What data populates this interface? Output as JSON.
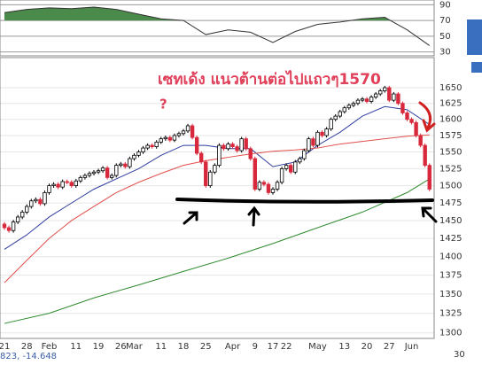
{
  "chart_data": [
    {
      "type": "line",
      "x": [
        0,
        5,
        10,
        15,
        20,
        25,
        30,
        35,
        40,
        45,
        50,
        55,
        60,
        65,
        70,
        75,
        80,
        85,
        90,
        95
      ],
      "values": [
        80,
        84,
        86,
        85,
        87,
        84,
        78,
        72,
        70,
        52,
        58,
        55,
        42,
        56,
        65,
        68,
        72,
        74,
        58,
        38
      ],
      "color": "#333333",
      "fill_above": 70,
      "fill_color": "#4a8a4a",
      "ylim": [
        25,
        96
      ],
      "yticks": [
        30,
        50,
        70,
        90
      ],
      "grid": true
    },
    {
      "type": "candlestick",
      "log": true,
      "grid": true,
      "annotations": [
        "เซทเด้ง แนวต้านต่อไปแถวๆ1570",
        "?"
      ],
      "categories": [
        "21",
        null,
        null,
        null,
        null,
        "28",
        null,
        null,
        null,
        null,
        "Feb",
        null,
        null,
        null,
        null,
        null,
        "11",
        null,
        null,
        null,
        null,
        "19",
        null,
        null,
        null,
        null,
        "26",
        null,
        null,
        "Mar",
        null,
        null,
        null,
        null,
        null,
        "11",
        null,
        null,
        null,
        null,
        "18",
        null,
        null,
        null,
        null,
        "25",
        null,
        null,
        null,
        null,
        null,
        "Apr",
        null,
        null,
        null,
        null,
        "9",
        null,
        null,
        null,
        "17",
        null,
        null,
        "22",
        null,
        null,
        null,
        null,
        null,
        null,
        "May",
        null,
        null,
        null,
        null,
        null,
        "13",
        null,
        null,
        null,
        null,
        "20",
        null,
        null,
        null,
        null,
        "27",
        null,
        null,
        null,
        null,
        "Jun",
        null,
        null,
        null,
        null
      ],
      "open": [
        1445,
        1440,
        1436,
        1448,
        1455,
        1462,
        1470,
        1478,
        1480,
        1474,
        1490,
        1500,
        1502,
        1498,
        1506,
        1505,
        1500,
        1507,
        1512,
        1515,
        1518,
        1520,
        1522,
        1526,
        1512,
        1515,
        1530,
        1532,
        1528,
        1540,
        1545,
        1550,
        1556,
        1560,
        1558,
        1565,
        1570,
        1572,
        1568,
        1575,
        1578,
        1582,
        1590,
        1572,
        1548,
        1535,
        1500,
        1520,
        1530,
        1560,
        1555,
        1562,
        1558,
        1552,
        1570,
        1555,
        1540,
        1495,
        1505,
        1502,
        1490,
        1495,
        1505,
        1525,
        1530,
        1520,
        1535,
        1540,
        1552,
        1570,
        1560,
        1580,
        1575,
        1585,
        1600,
        1605,
        1612,
        1618,
        1622,
        1625,
        1630,
        1632,
        1628,
        1635,
        1640,
        1645,
        1650,
        1630,
        1640,
        1625,
        1610,
        1600,
        1595,
        1575,
        1560,
        1530
      ],
      "high": [
        1448,
        1443,
        1451,
        1458,
        1465,
        1473,
        1481,
        1483,
        1483,
        1493,
        1503,
        1505,
        1505,
        1509,
        1509,
        1508,
        1510,
        1515,
        1518,
        1521,
        1523,
        1525,
        1529,
        1529,
        1518,
        1533,
        1535,
        1535,
        1543,
        1548,
        1553,
        1559,
        1563,
        1563,
        1568,
        1573,
        1575,
        1575,
        1578,
        1581,
        1585,
        1593,
        1593,
        1575,
        1551,
        1538,
        1523,
        1533,
        1563,
        1563,
        1565,
        1565,
        1561,
        1573,
        1573,
        1558,
        1543,
        1508,
        1508,
        1505,
        1498,
        1508,
        1528,
        1533,
        1533,
        1538,
        1543,
        1555,
        1573,
        1573,
        1583,
        1583,
        1588,
        1603,
        1608,
        1615,
        1621,
        1625,
        1628,
        1633,
        1635,
        1635,
        1638,
        1643,
        1648,
        1653,
        1653,
        1643,
        1643,
        1628,
        1613,
        1603,
        1598,
        1578,
        1563,
        1533
      ],
      "low": [
        1437,
        1433,
        1433,
        1445,
        1452,
        1459,
        1467,
        1475,
        1471,
        1471,
        1487,
        1497,
        1495,
        1495,
        1502,
        1497,
        1497,
        1504,
        1509,
        1512,
        1515,
        1517,
        1519,
        1509,
        1509,
        1512,
        1527,
        1525,
        1525,
        1537,
        1542,
        1547,
        1553,
        1555,
        1555,
        1562,
        1567,
        1565,
        1565,
        1572,
        1575,
        1579,
        1569,
        1545,
        1532,
        1497,
        1497,
        1517,
        1527,
        1552,
        1552,
        1555,
        1549,
        1549,
        1552,
        1537,
        1492,
        1492,
        1499,
        1487,
        1487,
        1492,
        1502,
        1522,
        1517,
        1517,
        1532,
        1537,
        1549,
        1557,
        1557,
        1572,
        1572,
        1582,
        1597,
        1602,
        1609,
        1615,
        1619,
        1622,
        1627,
        1625,
        1625,
        1632,
        1637,
        1642,
        1627,
        1627,
        1622,
        1607,
        1597,
        1592,
        1572,
        1557,
        1527,
        1492
      ],
      "close": [
        1440,
        1436,
        1448,
        1455,
        1462,
        1470,
        1478,
        1480,
        1474,
        1490,
        1500,
        1502,
        1498,
        1506,
        1505,
        1500,
        1507,
        1512,
        1515,
        1518,
        1520,
        1522,
        1526,
        1512,
        1515,
        1530,
        1532,
        1528,
        1540,
        1545,
        1550,
        1556,
        1560,
        1558,
        1565,
        1570,
        1572,
        1568,
        1575,
        1578,
        1582,
        1590,
        1572,
        1548,
        1535,
        1500,
        1520,
        1530,
        1560,
        1555,
        1562,
        1558,
        1552,
        1570,
        1555,
        1540,
        1495,
        1505,
        1502,
        1490,
        1495,
        1505,
        1525,
        1530,
        1520,
        1535,
        1540,
        1552,
        1570,
        1560,
        1580,
        1575,
        1585,
        1600,
        1605,
        1612,
        1618,
        1622,
        1625,
        1630,
        1632,
        1628,
        1635,
        1640,
        1645,
        1650,
        1630,
        1640,
        1625,
        1610,
        1600,
        1595,
        1575,
        1560,
        1530,
        1495
      ],
      "series": [
        {
          "color": "#2f3ea0",
          "x": [
            0,
            5,
            10,
            15,
            20,
            25,
            30,
            35,
            40,
            45,
            50,
            55,
            60,
            65,
            70,
            75,
            80,
            85,
            90,
            95
          ],
          "values": [
            1410,
            1430,
            1455,
            1475,
            1495,
            1510,
            1525,
            1545,
            1560,
            1560,
            1555,
            1555,
            1528,
            1535,
            1560,
            1580,
            1605,
            1620,
            1615,
            1592
          ]
        },
        {
          "color": "#e0504c",
          "x": [
            0,
            5,
            10,
            15,
            20,
            25,
            30,
            35,
            40,
            45,
            50,
            55,
            60,
            65,
            70,
            75,
            80,
            85,
            90,
            95
          ],
          "values": [
            1365,
            1395,
            1425,
            1450,
            1470,
            1490,
            1505,
            1518,
            1530,
            1537,
            1542,
            1547,
            1551,
            1553,
            1556,
            1562,
            1566,
            1570,
            1574,
            1576
          ]
        },
        {
          "color": "#2e8b2e",
          "x": [
            0,
            10,
            20,
            30,
            40,
            50,
            60,
            70,
            80,
            90,
            95
          ],
          "values": [
            1312,
            1325,
            1345,
            1362,
            1380,
            1398,
            1418,
            1440,
            1462,
            1490,
            1510
          ]
        }
      ],
      "ylim": [
        1293,
        1699
      ],
      "yticks": [
        1300,
        1325,
        1350,
        1375,
        1400,
        1425,
        1450,
        1475,
        1500,
        1525,
        1550,
        1575,
        1600,
        1625,
        1650
      ]
    }
  ],
  "footer": {
    "left": "823, -14.648",
    "right": "30"
  }
}
